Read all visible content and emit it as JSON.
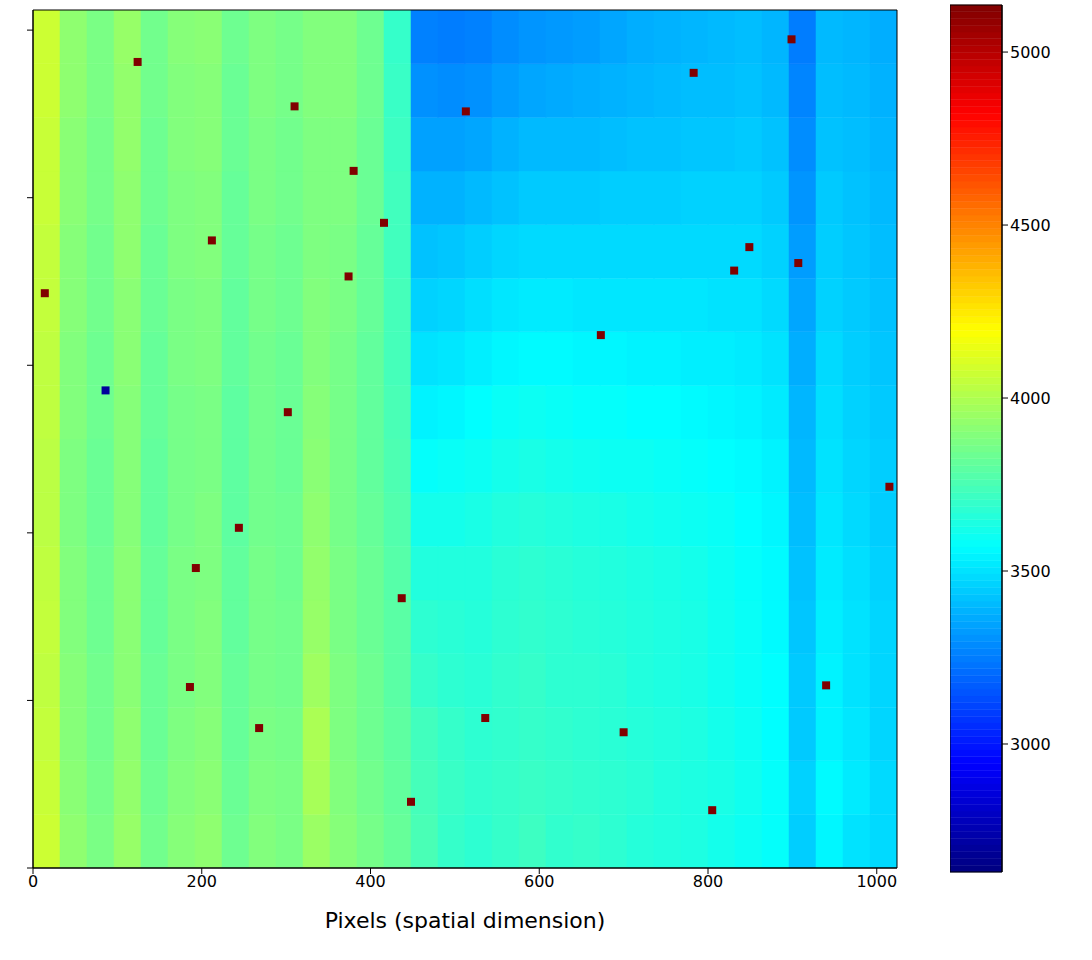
{
  "chart_data": {
    "type": "heatmap",
    "x_label": "Pixels (spatial dimension)",
    "xlim": [
      0,
      1024
    ],
    "xticks": [
      0,
      200,
      400,
      600,
      800,
      1000
    ],
    "ylim": [
      0,
      1024
    ],
    "yticks": [
      0,
      200,
      400,
      600,
      800,
      1000
    ],
    "tick_labels": "x",
    "x_bins": [
      0,
      32,
      64,
      96,
      128,
      160,
      192,
      224,
      256,
      288,
      320,
      352,
      384,
      416,
      448,
      480,
      512,
      544,
      576,
      608,
      640,
      672,
      704,
      736,
      768,
      800,
      832,
      864,
      896,
      928,
      960,
      992,
      1024
    ],
    "y_bins": [
      0,
      64,
      128,
      192,
      256,
      320,
      384,
      448,
      512,
      576,
      640,
      704,
      768,
      832,
      896,
      960,
      1024
    ],
    "cells": [
      [
        4070,
        3920,
        3870,
        3940,
        3850,
        3900,
        3920,
        3840,
        3890,
        3870,
        3950,
        3900,
        3860,
        3820,
        3750,
        3700,
        3680,
        3700,
        3720,
        3690,
        3700,
        3680,
        3660,
        3650,
        3640,
        3620,
        3600,
        3580,
        3450,
        3550,
        3500,
        3480
      ],
      [
        4060,
        3910,
        3860,
        3930,
        3840,
        3890,
        3910,
        3830,
        3880,
        3870,
        3980,
        3890,
        3850,
        3810,
        3740,
        3710,
        3690,
        3700,
        3710,
        3700,
        3690,
        3680,
        3670,
        3650,
        3640,
        3630,
        3610,
        3580,
        3460,
        3560,
        3520,
        3480
      ],
      [
        4050,
        3900,
        3850,
        3920,
        3830,
        3880,
        3900,
        3820,
        3870,
        3860,
        3990,
        3880,
        3840,
        3800,
        3730,
        3700,
        3680,
        3690,
        3700,
        3690,
        3680,
        3670,
        3660,
        3650,
        3640,
        3620,
        3600,
        3570,
        3440,
        3540,
        3510,
        3470
      ],
      [
        4040,
        3900,
        3850,
        3910,
        3830,
        3870,
        3890,
        3820,
        3860,
        3850,
        3960,
        3880,
        3840,
        3790,
        3700,
        3680,
        3670,
        3690,
        3700,
        3680,
        3680,
        3670,
        3650,
        3640,
        3630,
        3610,
        3590,
        3570,
        3440,
        3540,
        3500,
        3470
      ],
      [
        4050,
        3890,
        3840,
        3910,
        3820,
        3870,
        3890,
        3810,
        3860,
        3850,
        3940,
        3870,
        3830,
        3790,
        3680,
        3670,
        3660,
        3680,
        3690,
        3680,
        3670,
        3660,
        3650,
        3640,
        3630,
        3610,
        3590,
        3560,
        3430,
        3530,
        3500,
        3470
      ],
      [
        4040,
        3890,
        3840,
        3910,
        3820,
        3870,
        3880,
        3810,
        3860,
        3840,
        3930,
        3870,
        3830,
        3780,
        3650,
        3650,
        3650,
        3670,
        3680,
        3670,
        3660,
        3650,
        3640,
        3630,
        3620,
        3600,
        3580,
        3560,
        3420,
        3520,
        3490,
        3460
      ],
      [
        4030,
        3880,
        3830,
        3900,
        3810,
        3860,
        3880,
        3800,
        3850,
        3840,
        3920,
        3860,
        3820,
        3770,
        3620,
        3620,
        3630,
        3650,
        3660,
        3650,
        3640,
        3630,
        3620,
        3610,
        3600,
        3590,
        3570,
        3550,
        3410,
        3510,
        3480,
        3450
      ],
      [
        4030,
        3880,
        3830,
        3900,
        3810,
        3860,
        3870,
        3800,
        3850,
        3830,
        3910,
        3860,
        3810,
        3760,
        3580,
        3590,
        3600,
        3620,
        3630,
        3620,
        3610,
        3600,
        3600,
        3590,
        3580,
        3570,
        3560,
        3540,
        3400,
        3500,
        3470,
        3450
      ],
      [
        4040,
        3890,
        3840,
        3900,
        3820,
        3860,
        3870,
        3800,
        3850,
        3830,
        3900,
        3860,
        3810,
        3750,
        3540,
        3550,
        3570,
        3590,
        3600,
        3590,
        3580,
        3580,
        3570,
        3570,
        3560,
        3550,
        3540,
        3520,
        3390,
        3490,
        3460,
        3440
      ],
      [
        4040,
        3890,
        3840,
        3910,
        3820,
        3870,
        3880,
        3810,
        3850,
        3830,
        3890,
        3860,
        3810,
        3740,
        3500,
        3510,
        3530,
        3550,
        3560,
        3560,
        3550,
        3550,
        3540,
        3540,
        3530,
        3530,
        3520,
        3500,
        3370,
        3480,
        3450,
        3430
      ],
      [
        4050,
        3900,
        3850,
        3910,
        3830,
        3870,
        3880,
        3810,
        3860,
        3840,
        3890,
        3870,
        3820,
        3740,
        3460,
        3470,
        3490,
        3510,
        3520,
        3520,
        3510,
        3510,
        3510,
        3510,
        3510,
        3500,
        3500,
        3480,
        3350,
        3460,
        3440,
        3420
      ],
      [
        4050,
        3900,
        3850,
        3920,
        3830,
        3880,
        3890,
        3820,
        3860,
        3840,
        3880,
        3870,
        3820,
        3730,
        3420,
        3430,
        3450,
        3470,
        3480,
        3480,
        3480,
        3480,
        3480,
        3480,
        3480,
        3480,
        3480,
        3460,
        3330,
        3450,
        3430,
        3410
      ],
      [
        4060,
        3910,
        3860,
        3920,
        3840,
        3880,
        3890,
        3820,
        3870,
        3850,
        3880,
        3880,
        3830,
        3730,
        3380,
        3380,
        3400,
        3420,
        3440,
        3440,
        3440,
        3450,
        3450,
        3450,
        3460,
        3460,
        3460,
        3440,
        3310,
        3440,
        3420,
        3400
      ],
      [
        4060,
        3910,
        3860,
        3930,
        3840,
        3890,
        3900,
        3830,
        3870,
        3850,
        3880,
        3880,
        3830,
        3720,
        3340,
        3340,
        3350,
        3380,
        3400,
        3400,
        3400,
        3410,
        3420,
        3420,
        3430,
        3430,
        3440,
        3420,
        3290,
        3420,
        3410,
        3390
      ],
      [
        4070,
        3920,
        3870,
        3930,
        3850,
        3890,
        3900,
        3830,
        3880,
        3860,
        3890,
        3890,
        3840,
        3710,
        3300,
        3290,
        3300,
        3330,
        3350,
        3360,
        3370,
        3380,
        3390,
        3400,
        3410,
        3410,
        3420,
        3400,
        3270,
        3410,
        3400,
        3380
      ],
      [
        4070,
        3920,
        3870,
        3940,
        3850,
        3900,
        3910,
        3840,
        3880,
        3860,
        3890,
        3890,
        3840,
        3700,
        3260,
        3250,
        3260,
        3290,
        3310,
        3320,
        3330,
        3350,
        3370,
        3380,
        3390,
        3400,
        3410,
        3390,
        3250,
        3400,
        3390,
        3370
      ]
    ],
    "hot_pixels": {
      "x": [
        124,
        310,
        416,
        673,
        849,
        831,
        513,
        374,
        14,
        268,
        536,
        437,
        193,
        805,
        244,
        907,
        212,
        302,
        380,
        700,
        1015,
        448,
        186,
        940,
        899,
        783,
        86
      ],
      "y": [
        962,
        909,
        770,
        636,
        741,
        713,
        903,
        706,
        686,
        167,
        179,
        322,
        358,
        69,
        406,
        722,
        749,
        544,
        832,
        162,
        455,
        79,
        216,
        218,
        989,
        949,
        570
      ],
      "values": [
        5136,
        5136,
        5136,
        5136,
        5136,
        5136,
        5136,
        5136,
        5136,
        5136,
        5136,
        5136,
        5136,
        5136,
        5136,
        5136,
        5136,
        5136,
        5136,
        5136,
        5136,
        5136,
        5136,
        5136,
        5136,
        5136,
        2700
      ]
    },
    "colorbar_range": [
      2630,
      5136
    ],
    "colorbar_ticks": [
      3000,
      3500,
      4000,
      4500,
      5000
    ]
  }
}
